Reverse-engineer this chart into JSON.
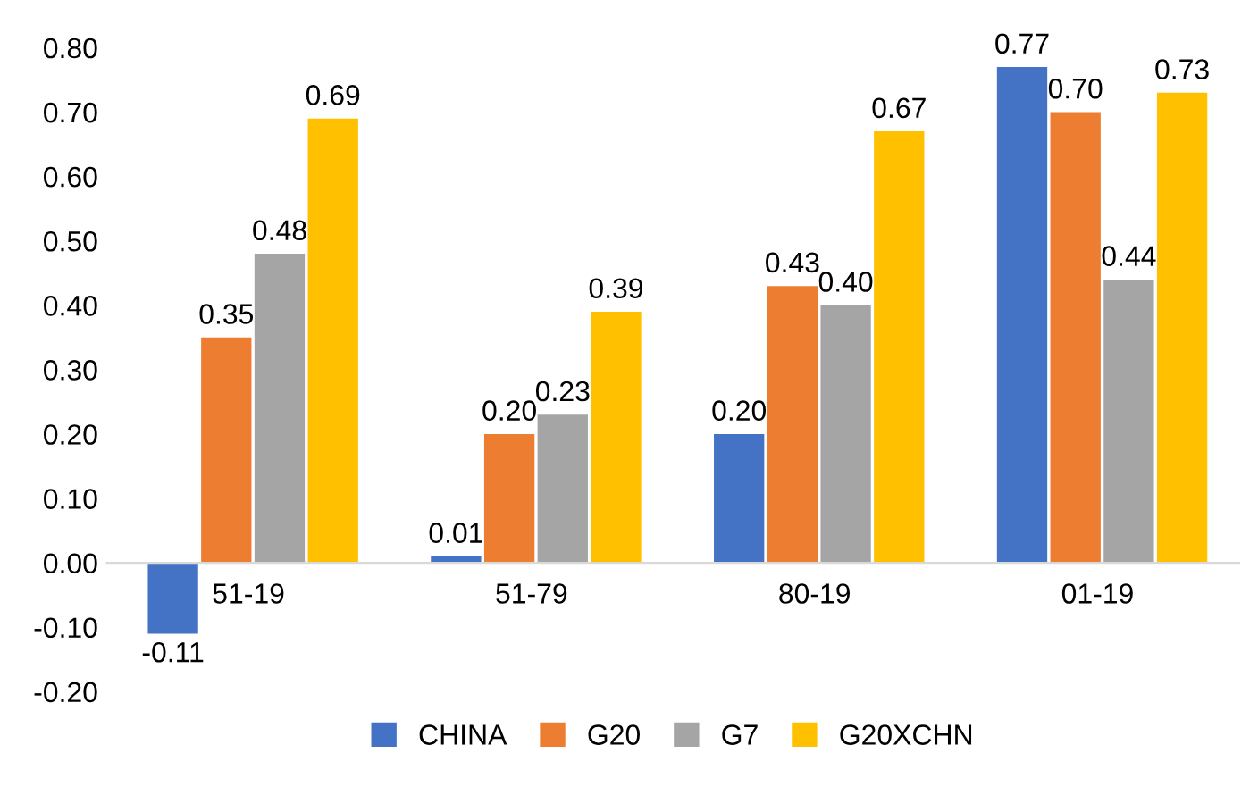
{
  "chart_data": {
    "type": "bar",
    "categories": [
      "51-19",
      "51-79",
      "80-19",
      "01-19"
    ],
    "series": [
      {
        "name": "CHINA",
        "color": "#4472c4",
        "values": [
          -0.11,
          0.01,
          0.2,
          0.77
        ],
        "value_labels": [
          "-0.11",
          "0.01",
          "0.20",
          "0.77"
        ]
      },
      {
        "name": "G20",
        "color": "#ed7d31",
        "values": [
          0.35,
          0.2,
          0.43,
          0.7
        ],
        "value_labels": [
          "0.35",
          "0.20",
          "0.43",
          "0.70"
        ]
      },
      {
        "name": "G7",
        "color": "#a5a5a5",
        "values": [
          0.48,
          0.23,
          0.4,
          0.44
        ],
        "value_labels": [
          "0.48",
          "0.23",
          "0.40",
          "0.44"
        ]
      },
      {
        "name": "G20XCHN",
        "color": "#ffc000",
        "values": [
          0.69,
          0.39,
          0.67,
          0.73
        ],
        "value_labels": [
          "0.69",
          "0.39",
          "0.67",
          "0.73"
        ]
      }
    ],
    "ylim": [
      -0.2,
      0.8
    ],
    "yticks": [
      {
        "value": -0.2,
        "label": "-0.20"
      },
      {
        "value": -0.1,
        "label": "-0.10"
      },
      {
        "value": 0,
        "label": "0.00"
      },
      {
        "value": 0.1,
        "label": "0.10"
      },
      {
        "value": 0.2,
        "label": "0.20"
      },
      {
        "value": 0.3,
        "label": "0.30"
      },
      {
        "value": 0.4,
        "label": "0.40"
      },
      {
        "value": 0.5,
        "label": "0.50"
      },
      {
        "value": 0.6,
        "label": "0.60"
      },
      {
        "value": 0.7,
        "label": "0.70"
      },
      {
        "value": 0.8,
        "label": "0.80"
      }
    ],
    "grid": false,
    "legend": "bottom"
  }
}
